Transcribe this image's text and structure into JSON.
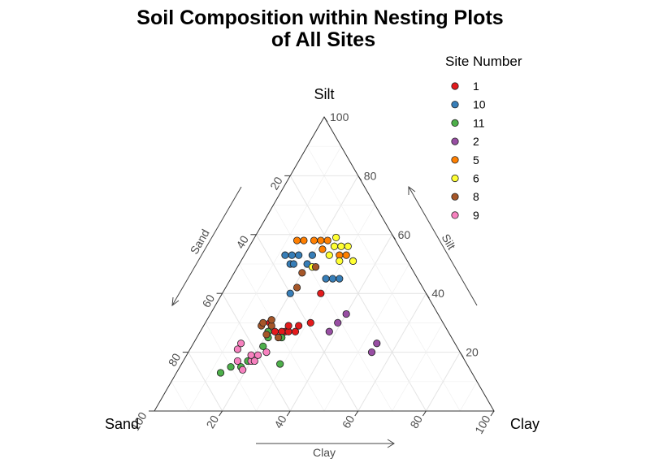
{
  "chart_data": {
    "type": "scatter",
    "subtype": "ternary",
    "title_lines": [
      "Soil Composition within Nesting Plots",
      "of All Sites"
    ],
    "vertices": {
      "top": "Silt",
      "left": "Sand",
      "right": "Clay"
    },
    "axis_arrow_labels": {
      "left": "Sand",
      "right": "Silt",
      "bottom": "Clay"
    },
    "ticks": {
      "left": [
        "20",
        "40",
        "60",
        "80",
        "100"
      ],
      "right": [
        "100",
        "80",
        "60",
        "40",
        "20"
      ],
      "bottom": [
        "20",
        "40",
        "60",
        "80",
        "100"
      ]
    },
    "grid": true,
    "legend": {
      "title": "Site Number",
      "placement": "top-right",
      "entries": [
        {
          "label": "1",
          "color": "#E41A1C"
        },
        {
          "label": "10",
          "color": "#377EB8"
        },
        {
          "label": "11",
          "color": "#4DAF4A"
        },
        {
          "label": "2",
          "color": "#984EA3"
        },
        {
          "label": "5",
          "color": "#FF7F00"
        },
        {
          "label": "6",
          "color": "#FFFF33"
        },
        {
          "label": "8",
          "color": "#A65628"
        },
        {
          "label": "9",
          "color": "#F781BF"
        }
      ]
    },
    "point_columns": [
      "site",
      "sand",
      "silt",
      "clay"
    ],
    "points": [
      [
        "1",
        53,
        27,
        20
      ],
      [
        "1",
        51,
        27,
        22
      ],
      [
        "1",
        48,
        27,
        25
      ],
      [
        "1",
        49,
        27,
        24
      ],
      [
        "1",
        47,
        27,
        26
      ],
      [
        "1",
        45,
        27,
        28
      ],
      [
        "1",
        46,
        29,
        25
      ],
      [
        "1",
        43,
        29,
        28
      ],
      [
        "1",
        39,
        30,
        31
      ],
      [
        "1",
        51,
        30,
        19
      ],
      [
        "1",
        31,
        40,
        29
      ],
      [
        "10",
        35,
        53,
        12
      ],
      [
        "10",
        33,
        53,
        14
      ],
      [
        "10",
        31,
        53,
        16
      ],
      [
        "10",
        27,
        53,
        20
      ],
      [
        "10",
        35,
        50,
        15
      ],
      [
        "10",
        34,
        50,
        16
      ],
      [
        "10",
        30,
        50,
        20
      ],
      [
        "10",
        27,
        45,
        28
      ],
      [
        "10",
        25,
        45,
        30
      ],
      [
        "10",
        23,
        45,
        32
      ],
      [
        "10",
        40,
        40,
        20
      ],
      [
        "11",
        74,
        13,
        13
      ],
      [
        "11",
        70,
        15,
        15
      ],
      [
        "11",
        67,
        15,
        18
      ],
      [
        "11",
        64,
        17,
        19
      ],
      [
        "11",
        55,
        16,
        29
      ],
      [
        "11",
        57,
        22,
        21
      ],
      [
        "11",
        54,
        25,
        21
      ],
      [
        "11",
        50,
        25,
        25
      ],
      [
        "11",
        53,
        27,
        20
      ],
      [
        "2",
        31,
        30,
        39
      ],
      [
        "2",
        26,
        20,
        54
      ],
      [
        "2",
        23,
        23,
        54
      ],
      [
        "2",
        35,
        27,
        38
      ],
      [
        "2",
        27,
        33,
        40
      ],
      [
        "5",
        29,
        58,
        13
      ],
      [
        "5",
        27,
        58,
        15
      ],
      [
        "5",
        24,
        58,
        18
      ],
      [
        "5",
        22,
        58,
        20
      ],
      [
        "5",
        20,
        58,
        22
      ],
      [
        "5",
        23,
        55,
        22
      ],
      [
        "5",
        19,
        53,
        28
      ],
      [
        "5",
        17,
        53,
        30
      ],
      [
        "5",
        16,
        51,
        33
      ],
      [
        "6",
        17,
        59,
        24
      ],
      [
        "6",
        19,
        56,
        25
      ],
      [
        "6",
        17,
        56,
        27
      ],
      [
        "6",
        15,
        56,
        29
      ],
      [
        "6",
        22,
        53,
        25
      ],
      [
        "6",
        20,
        51,
        29
      ],
      [
        "6",
        16,
        51,
        33
      ],
      [
        "6",
        29,
        49,
        22
      ],
      [
        "8",
        54,
        29,
        17
      ],
      [
        "8",
        51,
        29,
        20
      ],
      [
        "8",
        53,
        30,
        17
      ],
      [
        "8",
        50,
        31,
        19
      ],
      [
        "8",
        54,
        26,
        20
      ],
      [
        "8",
        51,
        25,
        24
      ],
      [
        "8",
        37,
        42,
        21
      ],
      [
        "8",
        33,
        47,
        20
      ],
      [
        "8",
        28,
        49,
        23
      ],
      [
        "9",
        63,
        17,
        20
      ],
      [
        "9",
        62,
        19,
        19
      ],
      [
        "9",
        60,
        19,
        21
      ],
      [
        "9",
        57,
        20,
        23
      ],
      [
        "9",
        67,
        14,
        19
      ],
      [
        "9",
        65,
        21,
        14
      ],
      [
        "9",
        63,
        23,
        14
      ],
      [
        "9",
        67,
        17,
        16
      ],
      [
        "9",
        62,
        17,
        21
      ]
    ]
  }
}
